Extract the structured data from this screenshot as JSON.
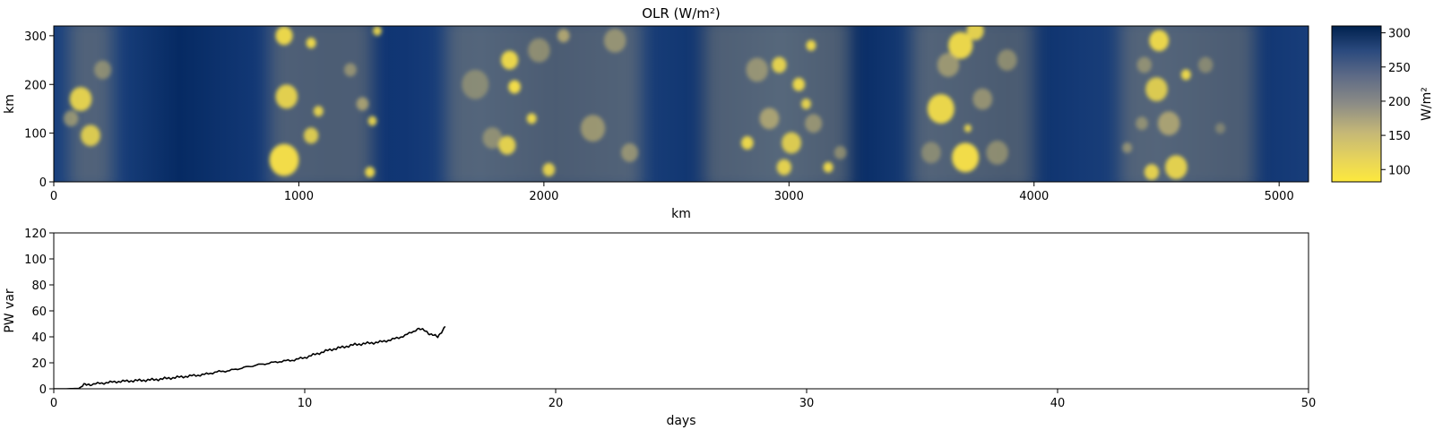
{
  "chart_data": [
    {
      "type": "heatmap",
      "title": "OLR (W/m²)",
      "xlabel": "km",
      "ylabel": "km",
      "xlim": [
        0,
        5120
      ],
      "ylim": [
        0,
        320
      ],
      "xticks": [
        0,
        1000,
        2000,
        3000,
        4000,
        5000
      ],
      "yticks": [
        0,
        100,
        200,
        300
      ],
      "colormap": "cividis_reversed",
      "colors": {
        "low": "#fde93d",
        "mid": "#8c8c86",
        "high": "#00214e",
        "bg_dark": "#0b3478"
      },
      "colorbar": {
        "label": "W/m²",
        "range": [
          82,
          310
        ],
        "ticks": [
          100,
          150,
          200,
          250,
          300
        ]
      },
      "cloud_bands_km": [
        [
          60,
          240
        ],
        [
          880,
          1300
        ],
        [
          1600,
          2400
        ],
        [
          2650,
          3250
        ],
        [
          3500,
          4000
        ],
        [
          4350,
          4900
        ]
      ]
    },
    {
      "type": "line",
      "xlabel": "days",
      "ylabel": "PW var",
      "xlim": [
        0,
        50
      ],
      "ylim": [
        0,
        120
      ],
      "xticks": [
        0,
        10,
        20,
        30,
        40,
        50
      ],
      "yticks": [
        0,
        20,
        40,
        60,
        80,
        100,
        120
      ],
      "line_color": "#000000",
      "series": [
        {
          "x": [
            0,
            0.5,
            1.0,
            1.2,
            1.5,
            2.0,
            2.5,
            3.0,
            3.5,
            4.0,
            4.5,
            5.0,
            5.5,
            6.0,
            6.5,
            7.0,
            7.5,
            8.0,
            8.5,
            9.0,
            9.5,
            10.0,
            10.5,
            11.0,
            11.5,
            12.0,
            12.5,
            13.0,
            13.5,
            14.0,
            14.5,
            14.8,
            15.0,
            15.3,
            15.6
          ],
          "y": [
            0,
            0,
            0.3,
            3.0,
            3.5,
            4.5,
            5.5,
            6.0,
            6.5,
            7.0,
            8.0,
            9.0,
            10.0,
            11.0,
            13.0,
            14.0,
            16.0,
            18.0,
            19.5,
            21.0,
            22.0,
            24.0,
            27.0,
            30.0,
            32.0,
            34.0,
            35.0,
            36.0,
            38.0,
            41.0,
            46.0,
            45.0,
            42.0,
            40.0,
            48.0
          ]
        }
      ]
    }
  ]
}
